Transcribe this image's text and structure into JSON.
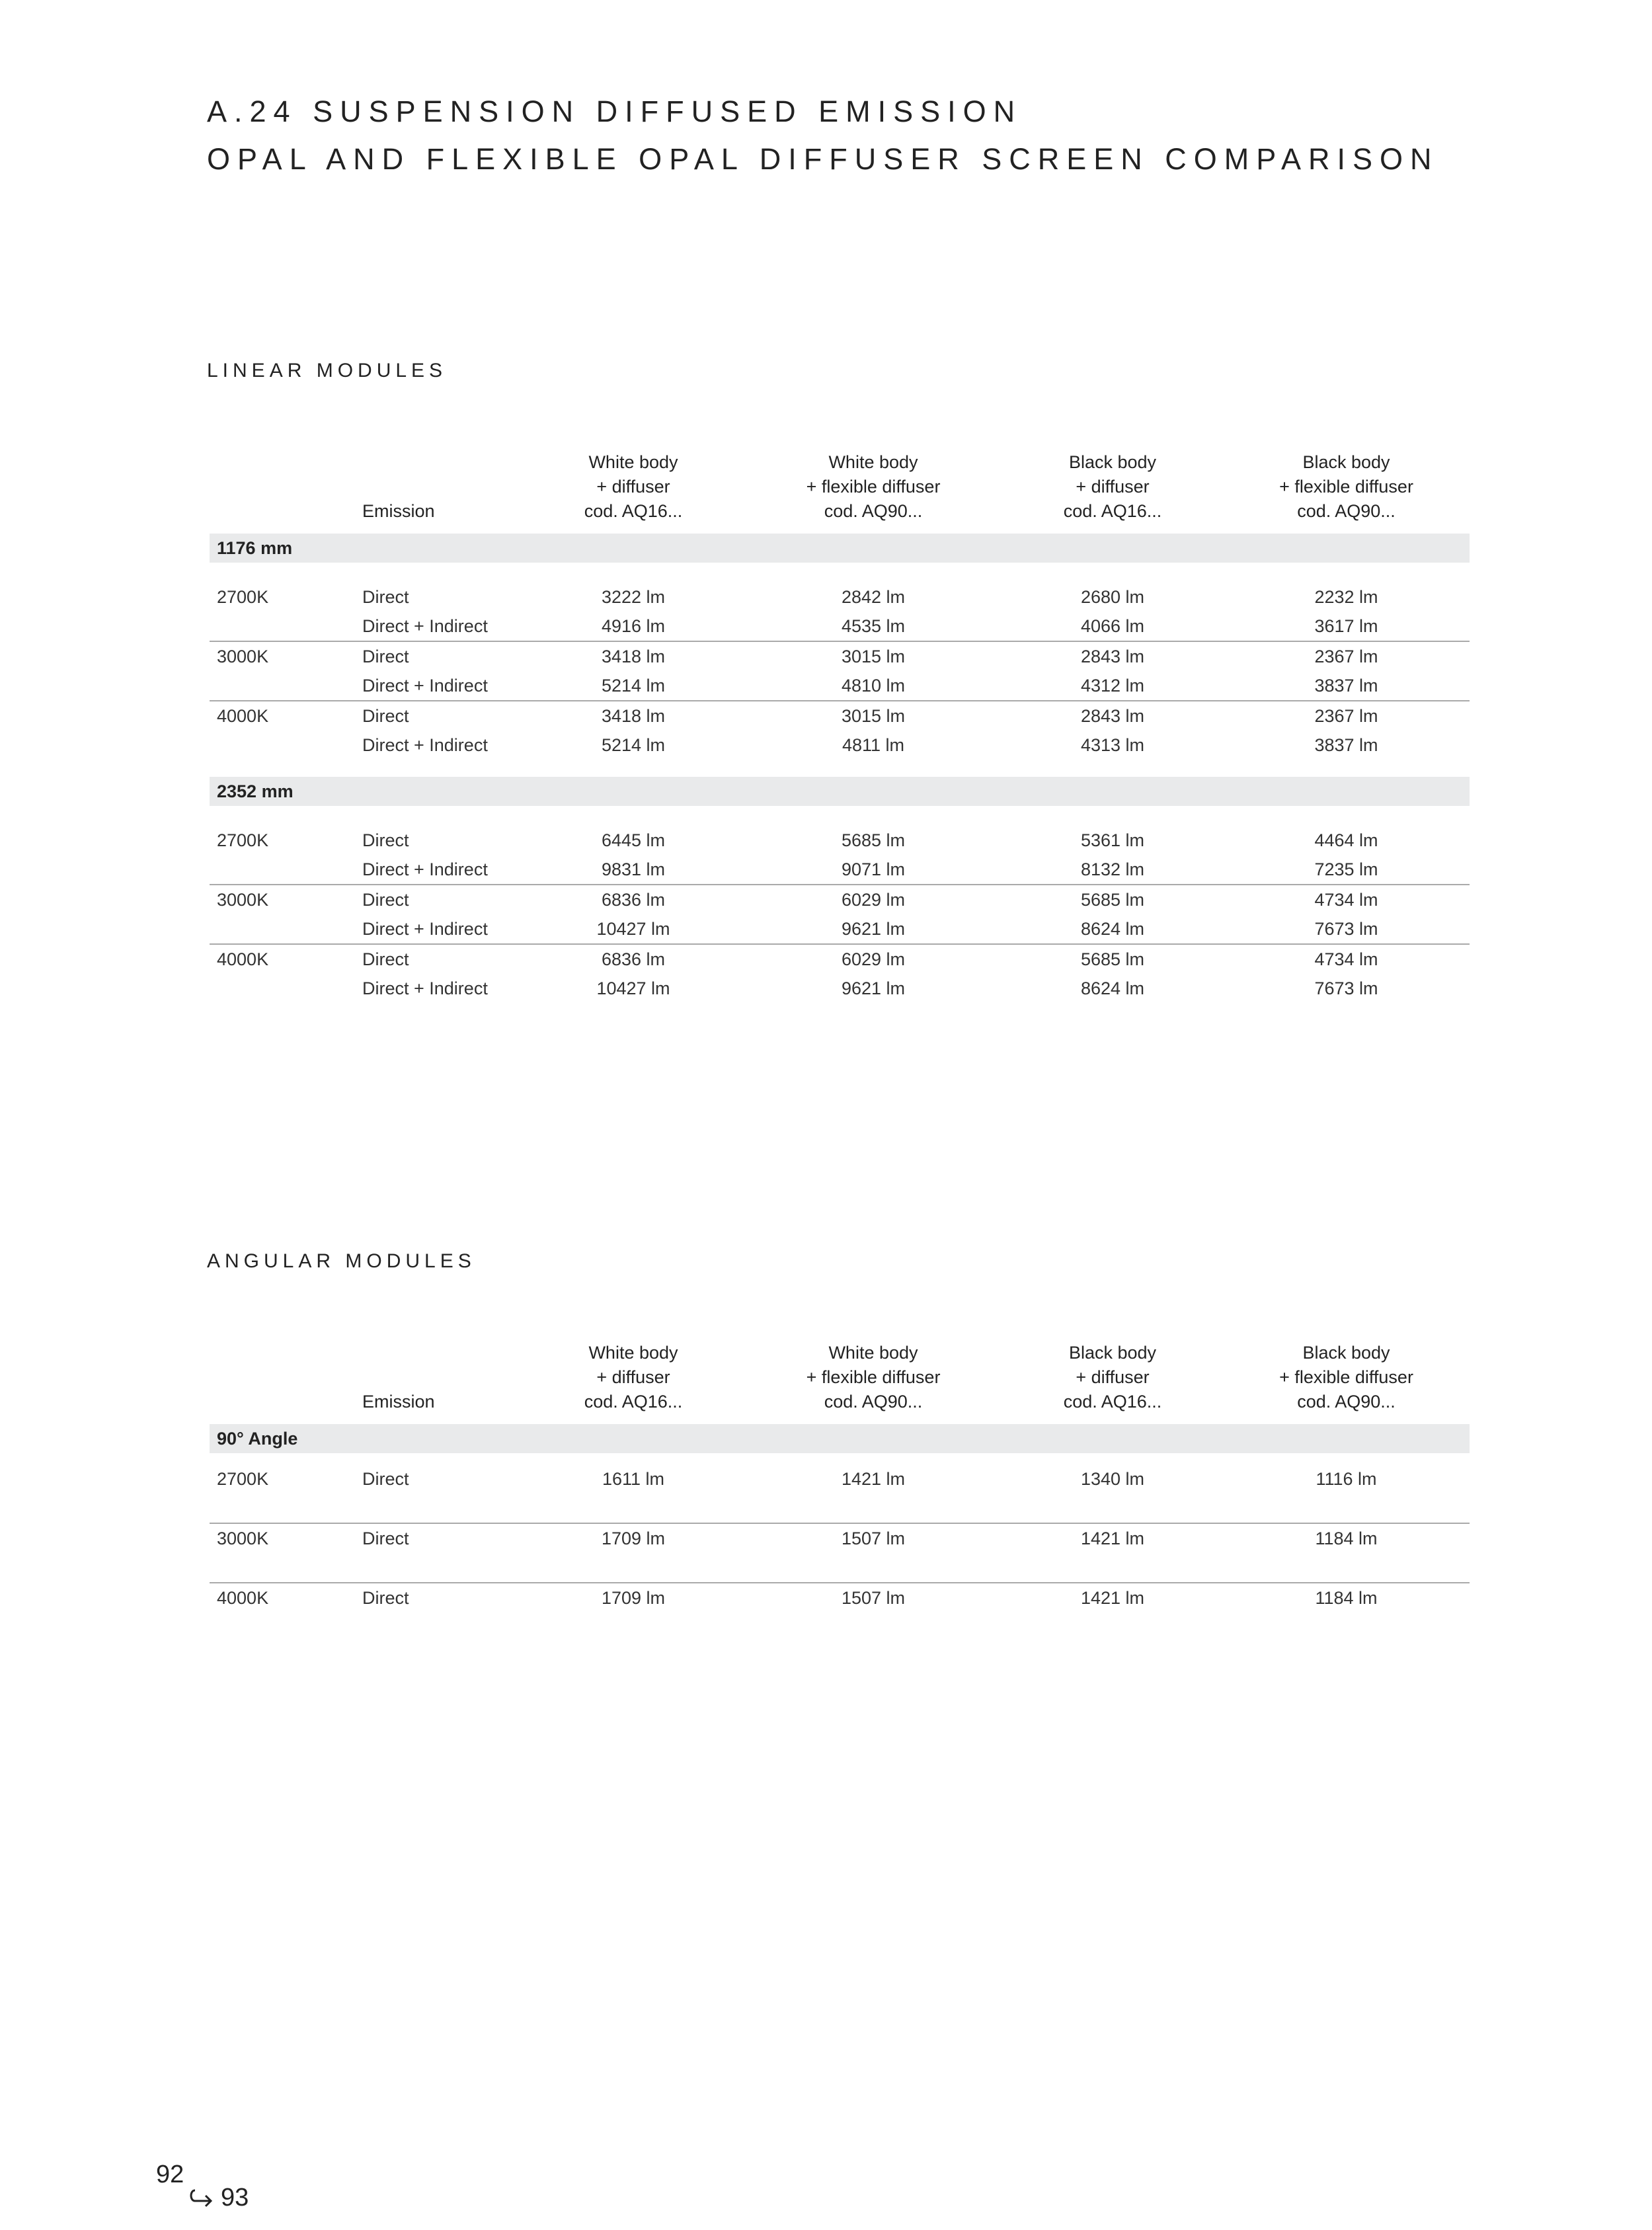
{
  "title_line1": "A.24 SUSPENSION DIFFUSED EMISSION",
  "title_line2": "OPAL AND FLEXIBLE OPAL DIFFUSER SCREEN COMPARISON",
  "columns": {
    "emission": "Emission",
    "products": [
      [
        "White body",
        "+ diffuser",
        "cod. AQ16..."
      ],
      [
        "White body",
        "+ flexible diffuser",
        "cod. AQ90..."
      ],
      [
        "Black body",
        "+ diffuser",
        "cod. AQ16..."
      ],
      [
        "Black body",
        "+ flexible diffuser",
        "cod. AQ90..."
      ]
    ]
  },
  "linear": {
    "title": "LINEAR MODULES",
    "groups": [
      {
        "label": "1176 mm",
        "temps": [
          {
            "temp": "2700K",
            "rows": [
              {
                "emission": "Direct",
                "values": [
                  "3222 lm",
                  "2842 lm",
                  "2680 lm",
                  "2232 lm"
                ]
              },
              {
                "emission": "Direct + Indirect",
                "values": [
                  "4916 lm",
                  "4535 lm",
                  "4066 lm",
                  "3617 lm"
                ]
              }
            ]
          },
          {
            "temp": "3000K",
            "rows": [
              {
                "emission": "Direct",
                "values": [
                  "3418 lm",
                  "3015 lm",
                  "2843 lm",
                  "2367 lm"
                ]
              },
              {
                "emission": "Direct + Indirect",
                "values": [
                  "5214 lm",
                  "4810 lm",
                  "4312 lm",
                  "3837 lm"
                ]
              }
            ]
          },
          {
            "temp": "4000K",
            "rows": [
              {
                "emission": "Direct",
                "values": [
                  "3418 lm",
                  "3015 lm",
                  "2843 lm",
                  "2367 lm"
                ]
              },
              {
                "emission": "Direct + Indirect",
                "values": [
                  "5214 lm",
                  "4811 lm",
                  "4313 lm",
                  "3837 lm"
                ]
              }
            ]
          }
        ]
      },
      {
        "label": "2352 mm",
        "temps": [
          {
            "temp": "2700K",
            "rows": [
              {
                "emission": "Direct",
                "values": [
                  "6445 lm",
                  "5685 lm",
                  "5361 lm",
                  "4464 lm"
                ]
              },
              {
                "emission": "Direct + Indirect",
                "values": [
                  "9831 lm",
                  "9071 lm",
                  "8132 lm",
                  "7235 lm"
                ]
              }
            ]
          },
          {
            "temp": "3000K",
            "rows": [
              {
                "emission": "Direct",
                "values": [
                  "6836 lm",
                  "6029 lm",
                  "5685 lm",
                  "4734 lm"
                ]
              },
              {
                "emission": "Direct + Indirect",
                "values": [
                  "10427 lm",
                  "9621 lm",
                  "8624 lm",
                  "7673 lm"
                ]
              }
            ]
          },
          {
            "temp": "4000K",
            "rows": [
              {
                "emission": "Direct",
                "values": [
                  "6836 lm",
                  "6029 lm",
                  "5685 lm",
                  "4734 lm"
                ]
              },
              {
                "emission": "Direct + Indirect",
                "values": [
                  "10427 lm",
                  "9621 lm",
                  "8624 lm",
                  "7673 lm"
                ]
              }
            ]
          }
        ]
      }
    ]
  },
  "angular": {
    "title": "ANGULAR MODULES",
    "groups": [
      {
        "label": "90° Angle",
        "temps": [
          {
            "temp": "2700K",
            "rows": [
              {
                "emission": "Direct",
                "values": [
                  "1611 lm",
                  "1421 lm",
                  "1340 lm",
                  "1116 lm"
                ]
              }
            ]
          },
          {
            "temp": "3000K",
            "rows": [
              {
                "emission": "Direct",
                "values": [
                  "1709 lm",
                  "1507 lm",
                  "1421 lm",
                  "1184 lm"
                ]
              }
            ]
          },
          {
            "temp": "4000K",
            "rows": [
              {
                "emission": "Direct",
                "values": [
                  "1709 lm",
                  "1507 lm",
                  "1421 lm",
                  "1184 lm"
                ]
              }
            ]
          }
        ]
      }
    ]
  },
  "page": {
    "current": "92",
    "next": "93",
    "next_icon": "curved-arrow-right-icon"
  }
}
